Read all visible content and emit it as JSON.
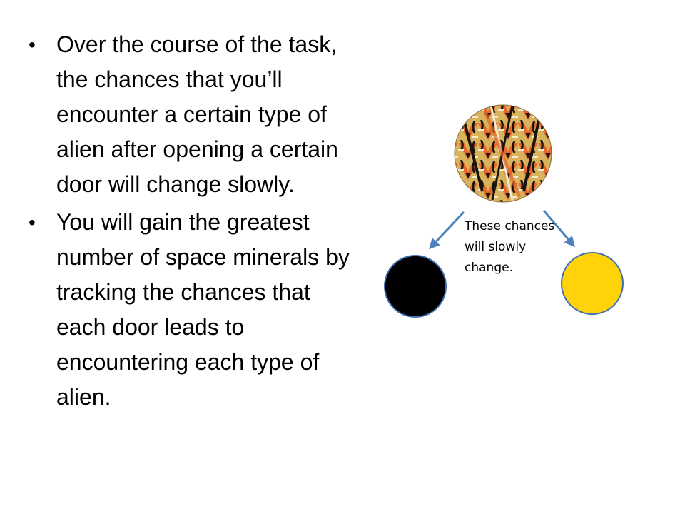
{
  "slide": {
    "bullets": [
      {
        "text": "Over the course of the task, the chances that you’ll encounter a certain type of alien after opening a certain door will change slowly."
      },
      {
        "text": "You will gain the greatest number of space minerals by tracking the chances that each door leads to encountering each type of alien."
      }
    ],
    "bullet_symbol": "•"
  },
  "diagram": {
    "caption": "These chances will slowly change.",
    "top_door": {
      "icon": "patterned-door-icon",
      "colors": [
        "#e7662b",
        "#d9b35b",
        "#1a1410",
        "#f3ead0"
      ]
    },
    "left_alien": {
      "icon": "black-alien-icon",
      "color": "#000000",
      "stroke": "#3e6fb2"
    },
    "right_alien": {
      "icon": "yellow-alien-icon",
      "color": "#ffd20a",
      "stroke": "#3e6fb2"
    },
    "arrow_color": "#4f81bd"
  }
}
